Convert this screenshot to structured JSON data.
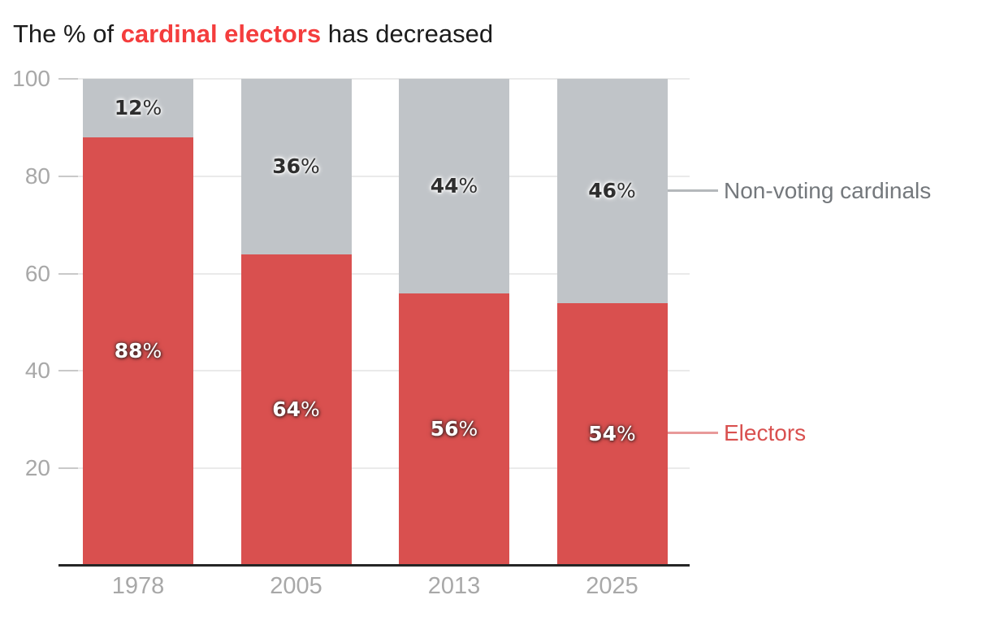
{
  "title": {
    "prefix": "The % of ",
    "highlight": "cardinal electors",
    "suffix": " has decreased"
  },
  "legend": {
    "non_voting": "Non-voting cardinals",
    "electors": "Electors"
  },
  "colors": {
    "electors_bar": "#d9504f",
    "non_voting_bar": "#c0c4c8",
    "title_text": "#1c1c1c",
    "title_highlight": "#f43d3d",
    "axis_text": "#a8a8a8",
    "gridline": "#eaeaea",
    "tickmark": "#c9c9c9",
    "baseline": "#262626",
    "value_label_dark": "#2e2e2e",
    "value_label_light": "#ffffff",
    "legend_non_voting_text": "#74787c",
    "legend_non_voting_line": "#b4b8bb",
    "legend_electors_text": "#d9504f",
    "legend_electors_line": "#e89a9a"
  },
  "chart_data": {
    "type": "bar",
    "stacked": true,
    "title": "The % of cardinal electors has decreased",
    "categories": [
      "1978",
      "2005",
      "2013",
      "2025"
    ],
    "series": [
      {
        "name": "Electors",
        "values": [
          88,
          64,
          56,
          54
        ],
        "labels": [
          "88%",
          "64%",
          "56%",
          "54%"
        ],
        "color": "#d9504f"
      },
      {
        "name": "Non-voting cardinals",
        "values": [
          12,
          36,
          44,
          46
        ],
        "labels": [
          "12%",
          "36%",
          "44%",
          "46%"
        ],
        "color": "#c0c4c8"
      }
    ],
    "value_suffix": "%",
    "xlabel": "",
    "ylabel": "",
    "ylim": [
      0,
      100
    ],
    "yticks": [
      20,
      40,
      60,
      80,
      100
    ],
    "grid": true,
    "legend_position": "right-annotations"
  }
}
